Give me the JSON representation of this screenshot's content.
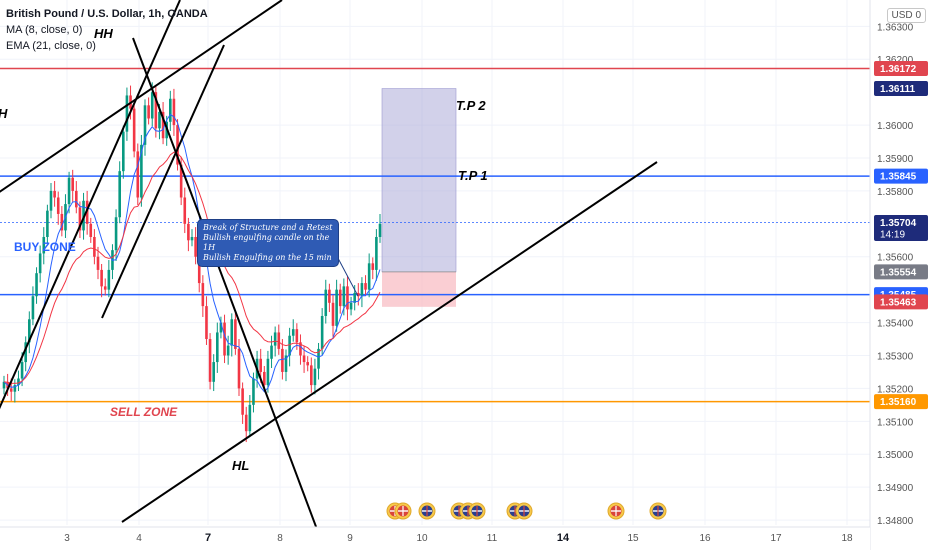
{
  "legend": {
    "title": "British Pound / U.S. Dollar, 1h, OANDA",
    "ma": "MA (8, close, 0)",
    "ema": "EMA (21, close, 0)"
  },
  "currency_button": "USD",
  "currency_suffix": "0",
  "chart_data": {
    "type": "candlestick",
    "title": "British Pound / U.S. Dollar, 1h, OANDA",
    "y_ticks": [
      "1.36300",
      "1.36200",
      "1.36000",
      "1.35900",
      "1.35800",
      "1.35600",
      "1.35400",
      "1.35300",
      "1.35200",
      "1.35100",
      "1.35000",
      "1.34900",
      "1.34800"
    ],
    "x_ticks": [
      "3",
      "4",
      "7",
      "8",
      "9",
      "10",
      "11",
      "14",
      "15",
      "16",
      "17",
      "18"
    ],
    "bold_x_ticks": [
      "7",
      "14"
    ],
    "price_levels": [
      {
        "label": "1.36172",
        "value": 1.36172,
        "color": "#e0454f"
      },
      {
        "label": "1.36111",
        "value": 1.36111,
        "color": "#1e2b7a"
      },
      {
        "label": "1.35845",
        "value": 1.35845,
        "color": "#2962ff"
      },
      {
        "label": "1.35704",
        "value": 1.35704,
        "color": "#1e2b7a",
        "sublabel": "14:19"
      },
      {
        "label": "1.35554",
        "value": 1.35554,
        "color": "#787b86"
      },
      {
        "label": "1.35485",
        "value": 1.35485,
        "color": "#2962ff"
      },
      {
        "label": "1.35463",
        "value": 1.35463,
        "color": "#e0454f"
      },
      {
        "label": "1.35160",
        "value": 1.3516,
        "color": "#ff9800"
      }
    ],
    "horizontal_lines": [
      {
        "value": 1.36172,
        "color": "#e0454f"
      },
      {
        "value": 1.35845,
        "color": "#2962ff"
      },
      {
        "value": 1.35485,
        "color": "#2962ff"
      },
      {
        "value": 1.3516,
        "color": "#ff9800"
      }
    ],
    "annotations": {
      "hh": "HH",
      "hl": "HL",
      "tp2": "T.P 2",
      "tp1": "T.P 1",
      "buy_zone": "BUY ZONE",
      "sell_zone": "SELL ZONE",
      "left_h": "H",
      "callout": [
        "Break of Structure and a Retest",
        "Bullish engulfing candle on the 1H",
        "Bullish Engulfing on the 15 min"
      ]
    },
    "position": {
      "entry": 1.35554,
      "target": 1.36111,
      "stop": 1.35463
    },
    "candle_path": [
      1.3522,
      1.352,
      1.3519,
      1.3521,
      1.3523,
      1.3528,
      1.3534,
      1.3541,
      1.3548,
      1.3555,
      1.3561,
      1.3566,
      1.3574,
      1.358,
      1.3578,
      1.3573,
      1.3568,
      1.3576,
      1.3584,
      1.358,
      1.3575,
      1.3568,
      1.3577,
      1.357,
      1.3566,
      1.356,
      1.3556,
      1.3551,
      1.355,
      1.3556,
      1.3562,
      1.3572,
      1.3586,
      1.3598,
      1.3609,
      1.3605,
      1.3592,
      1.3578,
      1.3594,
      1.3606,
      1.3602,
      1.361,
      1.3599,
      1.3604,
      1.3596,
      1.3601,
      1.3608,
      1.36,
      1.3588,
      1.3578,
      1.357,
      1.3565,
      1.3566,
      1.356,
      1.3552,
      1.3545,
      1.3535,
      1.3522,
      1.3528,
      1.3537,
      1.354,
      1.353,
      1.3533,
      1.3541,
      1.3532,
      1.352,
      1.3512,
      1.3507,
      1.3515,
      1.3523,
      1.3529,
      1.3525,
      1.3521,
      1.3529,
      1.3533,
      1.3537,
      1.3532,
      1.3525,
      1.353,
      1.3536,
      1.3538,
      1.3534,
      1.353,
      1.3528,
      1.3527,
      1.3521,
      1.3526,
      1.3532,
      1.3542,
      1.355,
      1.3546,
      1.3539,
      1.355,
      1.3545,
      1.3551,
      1.3544,
      1.3546,
      1.3549,
      1.3548,
      1.3552,
      1.355,
      1.3558,
      1.3556,
      1.3566,
      1.357
    ],
    "event_flags": [
      {
        "icon": "us-flag",
        "count": 2
      },
      {
        "icon": "uk-flag",
        "count": 1
      },
      {
        "icon": "uk-flag",
        "count": 3
      },
      {
        "icon": "uk-flag",
        "count": 2
      },
      {
        "icon": "us-flag",
        "count": 1
      },
      {
        "icon": "uk-flag",
        "count": 1
      }
    ],
    "ylim": [
      1.34785,
      1.3638
    ],
    "grid": true
  }
}
